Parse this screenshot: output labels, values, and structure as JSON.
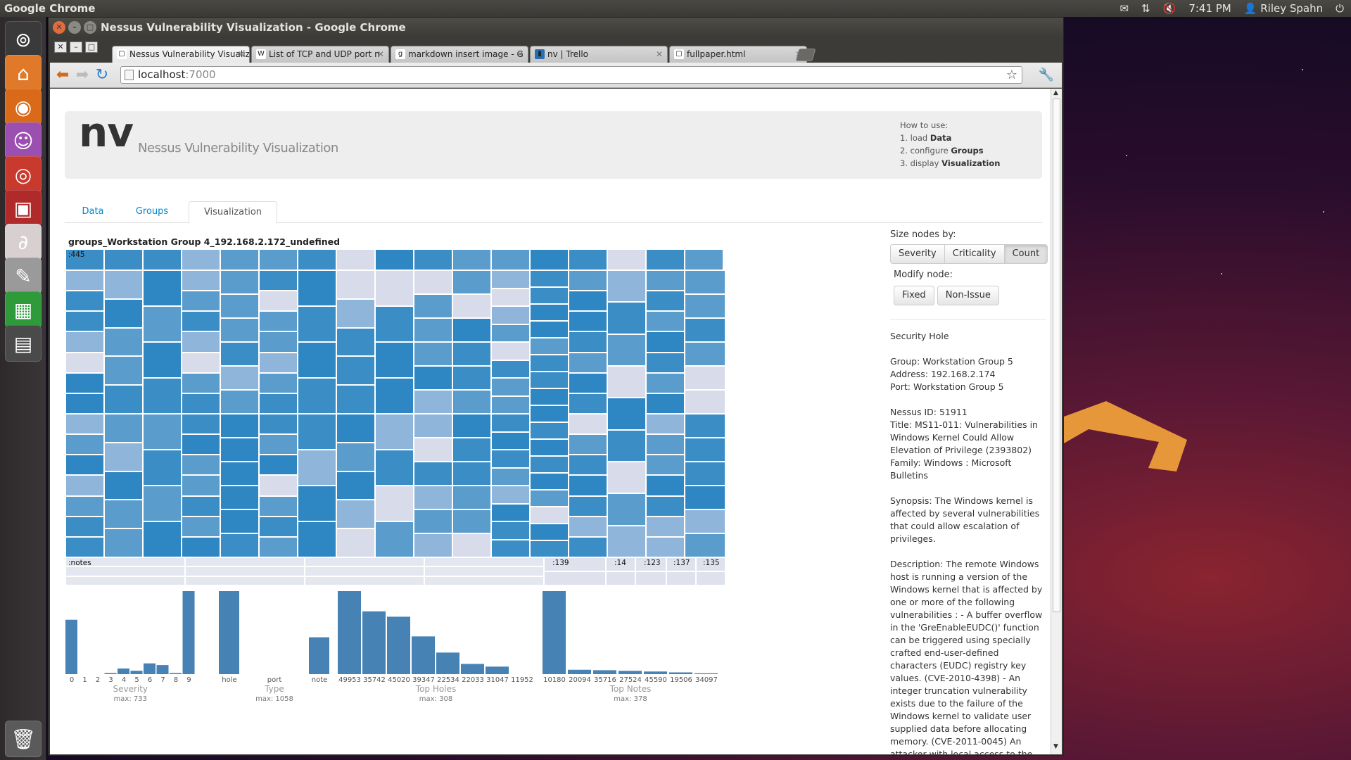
{
  "topbar": {
    "app_name": "Google Chrome",
    "time": "7:41 PM",
    "user": "Riley Spahn",
    "icons": [
      "mail-icon",
      "network-icon",
      "volume-muted-icon",
      "user-icon",
      "power-icon"
    ]
  },
  "launcher": {
    "items": [
      {
        "name": "dash-home-icon",
        "color": "#3a3a3a"
      },
      {
        "name": "home-folder-icon",
        "color": "#e07a2a"
      },
      {
        "name": "firefox-icon",
        "color": "#d86a1a"
      },
      {
        "name": "pidgin-icon",
        "color": "#9b4fb0"
      },
      {
        "name": "chrome-icon",
        "color": "#c8392e"
      },
      {
        "name": "terminal-icon",
        "color": "#b02a2a"
      },
      {
        "name": "pdf-viewer-icon",
        "color": "#d8d0d0"
      },
      {
        "name": "text-editor-icon",
        "color": "#9a9a9a"
      },
      {
        "name": "spreadsheet-icon",
        "color": "#2e9a3a"
      },
      {
        "name": "workspace-switcher-icon",
        "color": "#4a4a4a"
      },
      {
        "name": "trash-icon",
        "color": "#5a5a5a"
      }
    ]
  },
  "window": {
    "title": "Nessus Vulnerability Visualization - Google Chrome"
  },
  "browser": {
    "tabs": [
      {
        "label": "Nessus Vulnerability Visualiza",
        "favicon": "page-icon",
        "active": true
      },
      {
        "label": "List of TCP and UDP port n",
        "favicon": "wikipedia-icon",
        "active": false
      },
      {
        "label": "markdown insert image - G",
        "favicon": "google-icon",
        "active": false
      },
      {
        "label": "nv | Trello",
        "favicon": "trello-icon",
        "active": false
      },
      {
        "label": "fullpaper.html",
        "favicon": "page-icon",
        "active": false
      }
    ],
    "url_host": "localhost",
    "url_port": ":7000"
  },
  "app": {
    "brand": "nv",
    "subtitle": "Nessus Vulnerability Visualization",
    "howto": {
      "title": "How to use:",
      "steps": [
        {
          "prefix": "1. load ",
          "bold": "Data"
        },
        {
          "prefix": "2. configure ",
          "bold": "Groups"
        },
        {
          "prefix": "3. display ",
          "bold": "Visualization"
        }
      ]
    },
    "tabs": [
      "Data",
      "Groups",
      "Visualization"
    ],
    "active_tab": "Visualization"
  },
  "viz": {
    "title": "groups_Workstation Group 4_192.168.2.172_undefined",
    "treemap_labels": [
      ":445",
      ":notes",
      ":139",
      ":14",
      ":123",
      ":137",
      ":135"
    ]
  },
  "chart_data": {
    "type": "bar",
    "panels": [
      {
        "title": "Severity",
        "max_label": "max: 733",
        "categories": [
          "0",
          "1",
          "2",
          "3",
          "4",
          "5",
          "6",
          "7",
          "8",
          "9"
        ],
        "values": [
          480,
          0,
          0,
          10,
          50,
          30,
          95,
          80,
          10,
          733
        ],
        "max": 733
      },
      {
        "title": "Type",
        "max_label": "max: 1058",
        "categories": [
          "hole",
          "port",
          "note"
        ],
        "values": [
          1058,
          0,
          470
        ],
        "max": 1058
      },
      {
        "title": "Top Holes",
        "max_label": "max: 308",
        "categories": [
          "49953",
          "35742",
          "45020",
          "39347",
          "22534",
          "22033",
          "31047",
          "11952"
        ],
        "values": [
          308,
          233,
          213,
          140,
          80,
          38,
          28,
          0
        ],
        "max": 308
      },
      {
        "title": "Top Notes",
        "max_label": "max: 378",
        "categories": [
          "10180",
          "20094",
          "35716",
          "27524",
          "45590",
          "19506",
          "34097"
        ],
        "values": [
          378,
          20,
          18,
          15,
          12,
          8,
          4
        ],
        "max": 378
      }
    ]
  },
  "side": {
    "size_label": "Size nodes by:",
    "size_buttons": [
      "Severity",
      "Criticality",
      "Count"
    ],
    "size_active": "Count",
    "modify_label": "Modify node:",
    "modify_buttons": [
      "Fixed",
      "Non-Issue"
    ],
    "info": {
      "type": "Security Hole",
      "group": "Group: Workstation Group 5",
      "address": "Address: 192.168.2.174",
      "port": "Port: Workstation Group 5",
      "nessus_id": "Nessus ID: 51911",
      "title": "Title: MS11-011: Vulnerabilities in Windows Kernel Could Allow Elevation of Privilege (2393802)",
      "family": "Family: Windows : Microsoft Bulletins",
      "synopsis": "Synopsis: The Windows kernel is affected by several vulnerabilities that could allow escalation of privileges.",
      "description": "Description: The remote Windows host is running a version of the Windows kernel that is affected by one or more of the following vulnerabilities : - A buffer overflow in the 'GreEnableEUDC()' function can be triggered using specially crafted end-user-defined characters (EUDC) registry key values. (CVE-2010-4398) - An integer truncation vulnerability exists due to the failure of the Windows kernel to validate user supplied data before allocating memory. (CVE-2011-0045) An attacker with local access to the affected system can"
    }
  },
  "colors": {
    "bar": "#4682b4",
    "link": "#0088cc"
  }
}
